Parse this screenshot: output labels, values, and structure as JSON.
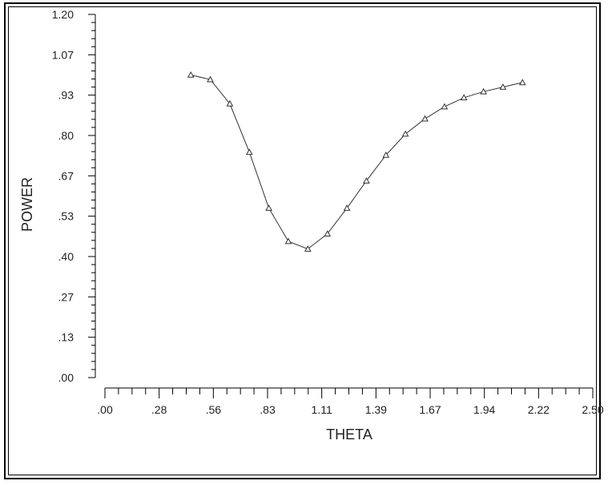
{
  "chart_data": {
    "type": "line",
    "xlabel": "THETA",
    "ylabel": "POWER",
    "xlim": [
      0.0,
      2.5
    ],
    "ylim": [
      0.0,
      1.2
    ],
    "x_tick_labels": [
      ".00",
      ".28",
      ".56",
      ".83",
      "1.11",
      "1.39",
      "1.67",
      "1.94",
      "2.22",
      "2.50"
    ],
    "y_tick_labels": [
      ".00",
      ".13",
      ".27",
      ".40",
      ".53",
      ".67",
      ".80",
      ".93",
      "1.07",
      "1.20"
    ],
    "grid": false,
    "marker": "triangle-open",
    "series": [
      {
        "x": [
          0.44,
          0.54,
          0.64,
          0.74,
          0.84,
          0.94,
          1.04,
          1.14,
          1.24,
          1.34,
          1.44,
          1.54,
          1.64,
          1.74,
          1.84,
          1.94,
          2.04,
          2.14
        ],
        "values": [
          1.0,
          0.985,
          0.905,
          0.745,
          0.56,
          0.45,
          0.425,
          0.475,
          0.56,
          0.65,
          0.735,
          0.805,
          0.855,
          0.895,
          0.925,
          0.945,
          0.96,
          0.975
        ]
      }
    ]
  }
}
